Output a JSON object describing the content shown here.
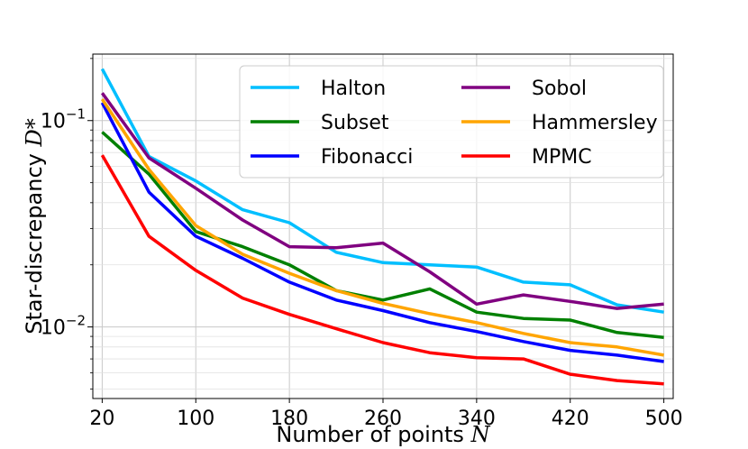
{
  "chart_data": {
    "type": "line",
    "xlabel": "Number of points",
    "xlabel_var": "N",
    "ylabel": "Star-discrepancy",
    "ylabel_var": "D*",
    "y_scale": "log",
    "xlim": [
      12,
      508
    ],
    "ylim": [
      0.0045,
      0.21
    ],
    "grid": true,
    "grid_minor": true,
    "legend_position": "top-right",
    "legend_columns": 2,
    "x_ticks": [
      20,
      100,
      180,
      260,
      340,
      420,
      500
    ],
    "y_ticks": [
      {
        "value": 0.1,
        "base": "10",
        "exp": "−1"
      },
      {
        "value": 0.01,
        "base": "10",
        "exp": "−2"
      }
    ],
    "x": [
      20,
      60,
      100,
      140,
      180,
      220,
      260,
      300,
      340,
      380,
      420,
      460,
      500
    ],
    "series": [
      {
        "name": "Halton",
        "color": "#00bfff",
        "values": [
          0.178,
          0.067,
          0.051,
          0.037,
          0.032,
          0.023,
          0.0205,
          0.02,
          0.0195,
          0.0165,
          0.016,
          0.0128,
          0.0118
        ]
      },
      {
        "name": "Subset",
        "color": "#008000",
        "values": [
          0.088,
          0.055,
          0.029,
          0.0245,
          0.02,
          0.015,
          0.0135,
          0.0153,
          0.0118,
          0.011,
          0.0108,
          0.0094,
          0.0089
        ]
      },
      {
        "name": "Fibonacci",
        "color": "#0000ff",
        "values": [
          0.122,
          0.045,
          0.0275,
          0.0215,
          0.0165,
          0.0135,
          0.012,
          0.0105,
          0.0095,
          0.0085,
          0.0077,
          0.0073,
          0.0068
        ]
      },
      {
        "name": "Sobol",
        "color": "#800080",
        "values": [
          0.136,
          0.066,
          0.047,
          0.033,
          0.0245,
          0.0242,
          0.0255,
          0.0185,
          0.0129,
          0.0143,
          0.0133,
          0.0123,
          0.0129
        ]
      },
      {
        "name": "Hammersley",
        "color": "#ffa500",
        "values": [
          0.127,
          0.058,
          0.031,
          0.0225,
          0.0182,
          0.015,
          0.013,
          0.0116,
          0.0105,
          0.0093,
          0.0084,
          0.008,
          0.0073
        ]
      },
      {
        "name": "MPMC",
        "color": "#ff0000",
        "values": [
          0.068,
          0.0275,
          0.0188,
          0.0138,
          0.0115,
          0.0098,
          0.0084,
          0.0075,
          0.0071,
          0.007,
          0.0059,
          0.0055,
          0.0053
        ]
      }
    ]
  }
}
